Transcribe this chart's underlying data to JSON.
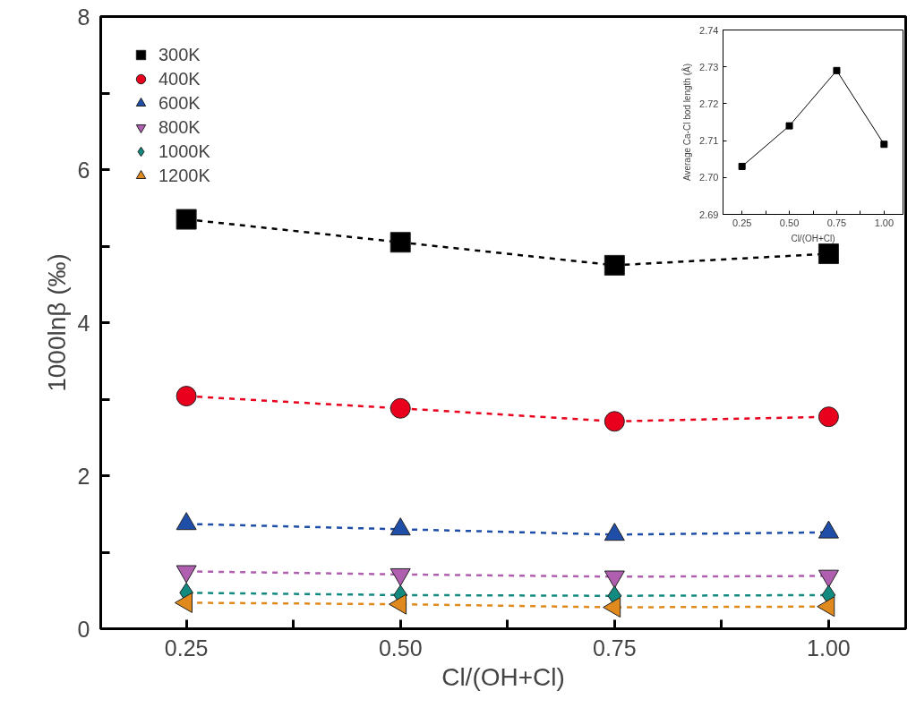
{
  "chart_data": [
    {
      "type": "line",
      "xlabel": "Cl/(OH+Cl)",
      "ylabel": "1000lnβ (‰)",
      "x": [
        0.25,
        0.5,
        0.75,
        1.0
      ],
      "xlim": [
        0.15,
        1.09
      ],
      "xticks": [
        {
          "value": 0.25,
          "label": "0.25"
        },
        {
          "value": 0.375,
          "label": null
        },
        {
          "value": 0.5,
          "label": "0.50"
        },
        {
          "value": 0.625,
          "label": null
        },
        {
          "value": 0.75,
          "label": "0.75"
        },
        {
          "value": 0.875,
          "label": null
        },
        {
          "value": 1.0,
          "label": "1.00"
        }
      ],
      "ylim": [
        0,
        8
      ],
      "yticks": [
        0,
        {
          "value": 1,
          "label": null
        },
        2,
        {
          "value": 3,
          "label": null
        },
        4,
        {
          "value": 5,
          "label": null
        },
        6,
        {
          "value": 7,
          "label": null
        },
        8
      ],
      "grid": false,
      "legend": "top left",
      "line_style": "dashed",
      "series": [
        {
          "name": "300K",
          "color": "#000000",
          "marker": "square",
          "values": [
            5.35,
            5.05,
            4.75,
            4.9
          ]
        },
        {
          "name": "400K",
          "color": "#e8001c",
          "marker": "circle",
          "values": [
            3.04,
            2.88,
            2.71,
            2.77
          ]
        },
        {
          "name": "600K",
          "color": "#1f4ea8",
          "marker": "triangle",
          "values": [
            1.37,
            1.3,
            1.23,
            1.26
          ]
        },
        {
          "name": "800K",
          "color": "#b05fb0",
          "marker": "triangle_down",
          "values": [
            0.75,
            0.71,
            0.68,
            0.69
          ]
        },
        {
          "name": "1000K",
          "color": "#138a80",
          "marker": "diamond",
          "values": [
            0.47,
            0.44,
            0.43,
            0.44
          ]
        },
        {
          "name": "1200K",
          "color": "#e08a1e",
          "marker": "triangle_left",
          "values": [
            0.34,
            0.32,
            0.28,
            0.29
          ]
        }
      ]
    },
    {
      "type": "line",
      "xlabel": "Cl/(OH+Cl)",
      "ylabel": "Average Ca-Cl bod length (Å)",
      "x": [
        0.25,
        0.5,
        0.75,
        1.0
      ],
      "xlim": [
        0.15,
        1.1
      ],
      "xticks": [
        {
          "value": 0.25,
          "label": "0.25"
        },
        {
          "value": 0.375,
          "label": null
        },
        {
          "value": 0.5,
          "label": "0.50"
        },
        {
          "value": 0.625,
          "label": null
        },
        {
          "value": 0.75,
          "label": "0.75"
        },
        {
          "value": 0.875,
          "label": null
        },
        {
          "value": 1.0,
          "label": "1.00"
        }
      ],
      "ylim": [
        2.69,
        2.74
      ],
      "yticks": [
        {
          "value": 2.69,
          "label": "2.69"
        },
        {
          "value": 2.7,
          "label": "2.70"
        },
        {
          "value": 2.71,
          "label": "2.71"
        },
        {
          "value": 2.72,
          "label": "2.72"
        },
        {
          "value": 2.73,
          "label": "2.73"
        },
        {
          "value": 2.74,
          "label": "2.74"
        }
      ],
      "grid": false,
      "legend": false,
      "line_style": "solid",
      "marker": "square",
      "series": [
        {
          "color": "#000000",
          "values": [
            2.703,
            2.714,
            2.729,
            2.709
          ]
        }
      ]
    }
  ]
}
